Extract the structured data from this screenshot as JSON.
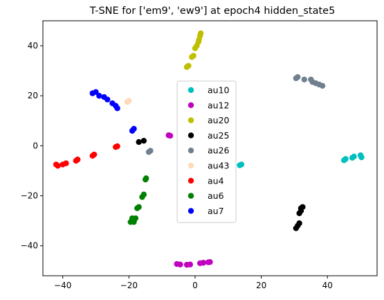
{
  "chart_data": {
    "type": "scatter",
    "title": "T-SNE for ['em9', 'ew9'] at epoch4 hidden_state5",
    "xlabel": "",
    "ylabel": "",
    "xlim": [
      -46,
      55
    ],
    "ylim": [
      -52,
      50
    ],
    "xticks": [
      -40,
      -20,
      0,
      20,
      40
    ],
    "yticks": [
      -40,
      -20,
      0,
      20,
      40
    ],
    "grid": false,
    "legend_position": "center",
    "series": [
      {
        "name": "au10",
        "color": "#00bfbf",
        "points": [
          [
            45,
            -5.8
          ],
          [
            45.5,
            -5.3
          ],
          [
            47.5,
            -4.8
          ],
          [
            48,
            -4.3
          ],
          [
            50,
            -3.8
          ],
          [
            50.3,
            -4.6
          ],
          [
            13.5,
            -7.8
          ],
          [
            14,
            -7.5
          ]
        ]
      },
      {
        "name": "au12",
        "color": "#bf00bf",
        "points": [
          [
            -8,
            4.2
          ],
          [
            -7.5,
            4
          ],
          [
            -5.5,
            -47.3
          ],
          [
            -4.5,
            -47.5
          ],
          [
            -2.5,
            -47.6
          ],
          [
            -1.5,
            -47.5
          ],
          [
            1.5,
            -47
          ],
          [
            2.5,
            -46.8
          ],
          [
            4,
            -46.6
          ],
          [
            4.5,
            -46.5
          ]
        ]
      },
      {
        "name": "au20",
        "color": "#bfbf00",
        "points": [
          [
            -2.5,
            31.5
          ],
          [
            -2,
            32
          ],
          [
            -1,
            35.5
          ],
          [
            -0.5,
            36
          ],
          [
            0,
            39
          ],
          [
            0.5,
            40
          ],
          [
            1,
            41.5
          ],
          [
            1.2,
            42.5
          ],
          [
            1.5,
            44
          ],
          [
            1.7,
            45
          ]
        ]
      },
      {
        "name": "au25",
        "color": "#000000",
        "points": [
          [
            -17,
            1.5
          ],
          [
            -15.5,
            2
          ],
          [
            30.5,
            -33
          ],
          [
            31,
            -32
          ],
          [
            31.5,
            -31
          ],
          [
            31.5,
            -27
          ],
          [
            32,
            -26
          ],
          [
            32,
            -25
          ],
          [
            32.5,
            -24.5
          ]
        ]
      },
      {
        "name": "au26",
        "color": "#708090",
        "points": [
          [
            -14,
            -2.5
          ],
          [
            -13.5,
            -2
          ],
          [
            30.5,
            27
          ],
          [
            31,
            27.5
          ],
          [
            33,
            26.5
          ],
          [
            35,
            26.5
          ],
          [
            35.5,
            25.5
          ],
          [
            36.5,
            25
          ],
          [
            37.5,
            24.5
          ],
          [
            38.5,
            24
          ]
        ]
      },
      {
        "name": "au43",
        "color": "#ffdab9",
        "points": [
          [
            -20.5,
            17.5
          ],
          [
            -20,
            18
          ]
        ]
      },
      {
        "name": "au4",
        "color": "#ff0000",
        "points": [
          [
            -42,
            -7.5
          ],
          [
            -41.5,
            -8
          ],
          [
            -40,
            -7.5
          ],
          [
            -39,
            -7
          ],
          [
            -36,
            -6
          ],
          [
            -35.5,
            -5.5
          ],
          [
            -31,
            -4
          ],
          [
            -30.5,
            -3.5
          ],
          [
            -24,
            -0.5
          ],
          [
            -23.5,
            -0.2
          ]
        ]
      },
      {
        "name": "au6",
        "color": "#008000",
        "points": [
          [
            -19.5,
            -30.5
          ],
          [
            -19,
            -29
          ],
          [
            -18.5,
            -30.5
          ],
          [
            -18,
            -29
          ],
          [
            -17.5,
            -25
          ],
          [
            -17,
            -24.5
          ],
          [
            -16,
            -20.5
          ],
          [
            -15.5,
            -19.5
          ],
          [
            -15,
            -13.5
          ],
          [
            -14.8,
            -13
          ]
        ]
      },
      {
        "name": "au7",
        "color": "#0000ff",
        "points": [
          [
            -31,
            21
          ],
          [
            -30,
            21.5
          ],
          [
            -29,
            20
          ],
          [
            -27.5,
            19.5
          ],
          [
            -26.5,
            18.5
          ],
          [
            -25,
            17
          ],
          [
            -24,
            16
          ],
          [
            -23.5,
            15
          ],
          [
            -19,
            6
          ],
          [
            -18.5,
            6.8
          ]
        ]
      }
    ]
  }
}
